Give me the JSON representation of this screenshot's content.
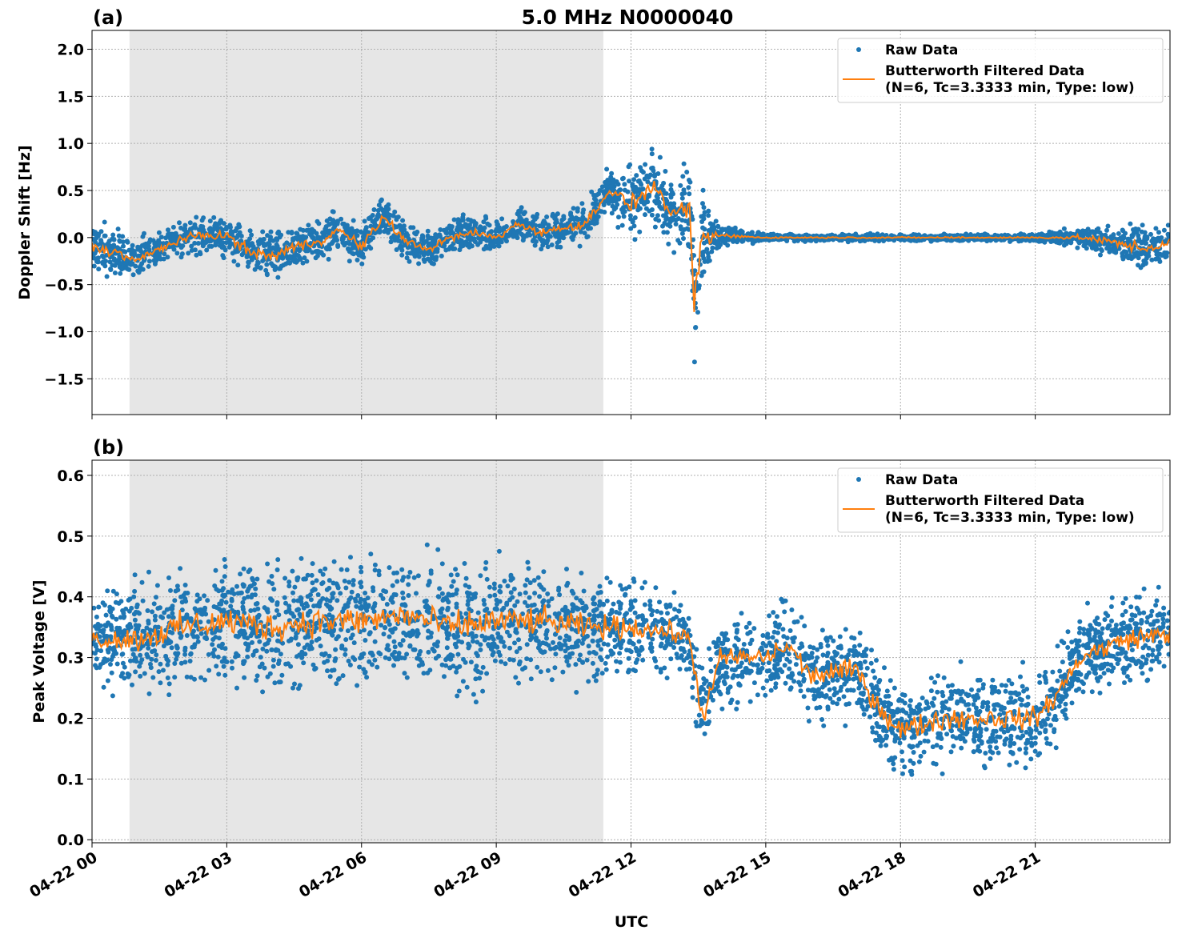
{
  "chart_data": [
    {
      "type": "scatter",
      "panel_label": "(a)",
      "title": "5.0 MHz N0000040",
      "xlabel": "",
      "ylabel": "Doppler Shift [Hz]",
      "xlim": [
        "04-22 00:00",
        "04-23 00:00"
      ],
      "ylim": [
        -1.88,
        2.2
      ],
      "yticks": [
        -1.5,
        -1.0,
        -0.5,
        0.0,
        0.5,
        1.0,
        1.5,
        2.0
      ],
      "ytick_labels": [
        "−1.5",
        "−1.0",
        "−0.5",
        "0.0",
        "0.5",
        "1.0",
        "1.5",
        "2.0"
      ],
      "grid": true,
      "legend_placement": "top-right",
      "shaded_interval": [
        "00:50",
        "11:23"
      ],
      "series": [
        {
          "name": "Raw Data",
          "kind": "points",
          "color": "#1f77b4",
          "envelope_hours": [
            0,
            2,
            4,
            6,
            8,
            10,
            11.4,
            12,
            13,
            13.4,
            14,
            15,
            18,
            21,
            22,
            23,
            24
          ],
          "envelope_halfwidth": [
            0.35,
            0.25,
            0.35,
            0.3,
            0.25,
            0.25,
            0.3,
            0.5,
            0.45,
            0.9,
            0.15,
            0.05,
            0.05,
            0.05,
            0.15,
            0.3,
            0.3
          ]
        },
        {
          "name": "Butterworth Filtered Data\n(N=6, Tc=3.3333 min, Type: low)",
          "kind": "line",
          "color": "#ff7f0e",
          "x_hours": [
            0,
            0.5,
            1,
            1.5,
            2,
            2.5,
            3,
            3.5,
            4,
            4.5,
            5,
            5.5,
            6,
            6.5,
            7,
            7.5,
            8,
            8.5,
            9,
            9.5,
            10,
            10.5,
            11,
            11.5,
            12,
            12.5,
            13,
            13.3,
            13.4,
            13.6,
            14,
            15,
            16,
            17,
            18,
            19,
            20,
            21,
            22,
            22.5,
            23,
            23.5,
            24
          ],
          "y": [
            -0.1,
            -0.15,
            -0.25,
            -0.12,
            -0.02,
            0.03,
            0.02,
            -0.15,
            -0.2,
            -0.1,
            -0.05,
            0.08,
            -0.1,
            0.22,
            -0.05,
            -0.12,
            0.0,
            0.05,
            0.0,
            0.15,
            0.05,
            0.1,
            0.15,
            0.5,
            0.35,
            0.55,
            0.2,
            0.35,
            -0.7,
            0.0,
            0.02,
            0.0,
            0.0,
            0.0,
            0.0,
            0.0,
            0.0,
            0.0,
            0.0,
            -0.03,
            -0.08,
            -0.12,
            -0.05
          ]
        }
      ]
    },
    {
      "type": "scatter",
      "panel_label": "(b)",
      "xlabel": "UTC",
      "ylabel": "Peak Voltage [V]",
      "xlim": [
        "04-22 00:00",
        "04-23 00:00"
      ],
      "ylim": [
        -0.005,
        0.625
      ],
      "yticks": [
        0.0,
        0.1,
        0.2,
        0.3,
        0.4,
        0.5,
        0.6
      ],
      "ytick_labels": [
        "0.0",
        "0.1",
        "0.2",
        "0.3",
        "0.4",
        "0.5",
        "0.6"
      ],
      "xticks": [
        "04-22 00",
        "04-22 03",
        "04-22 06",
        "04-22 09",
        "04-22 12",
        "04-22 15",
        "04-22 18",
        "04-22 21"
      ],
      "grid": true,
      "legend_placement": "top-right",
      "shaded_interval": [
        "00:50",
        "11:23"
      ],
      "series": [
        {
          "name": "Raw Data",
          "kind": "points",
          "color": "#1f77b4",
          "envelope_hours": [
            0,
            1,
            2,
            6,
            9,
            11,
            13.3,
            13.5,
            15,
            17,
            17.5,
            19,
            21,
            22,
            24
          ],
          "envelope_halfwidth": [
            0.1,
            0.12,
            0.14,
            0.14,
            0.14,
            0.12,
            0.09,
            0.1,
            0.1,
            0.1,
            0.11,
            0.11,
            0.1,
            0.1,
            0.1
          ]
        },
        {
          "name": "Butterworth Filtered Data\n(N=6, Tc=3.3333 min, Type: low)",
          "kind": "line",
          "color": "#ff7f0e",
          "x_hours": [
            0,
            1,
            2,
            3,
            4,
            5,
            6,
            7,
            8,
            9,
            10,
            11,
            12,
            13,
            13.3,
            13.6,
            14,
            15,
            15.5,
            16,
            17,
            17.5,
            18,
            19,
            20,
            21,
            21.5,
            22,
            23,
            24
          ],
          "y": [
            0.33,
            0.33,
            0.35,
            0.36,
            0.35,
            0.36,
            0.36,
            0.37,
            0.35,
            0.36,
            0.36,
            0.35,
            0.35,
            0.34,
            0.33,
            0.2,
            0.3,
            0.3,
            0.32,
            0.27,
            0.28,
            0.22,
            0.18,
            0.2,
            0.2,
            0.2,
            0.24,
            0.3,
            0.33,
            0.34
          ]
        }
      ]
    }
  ]
}
